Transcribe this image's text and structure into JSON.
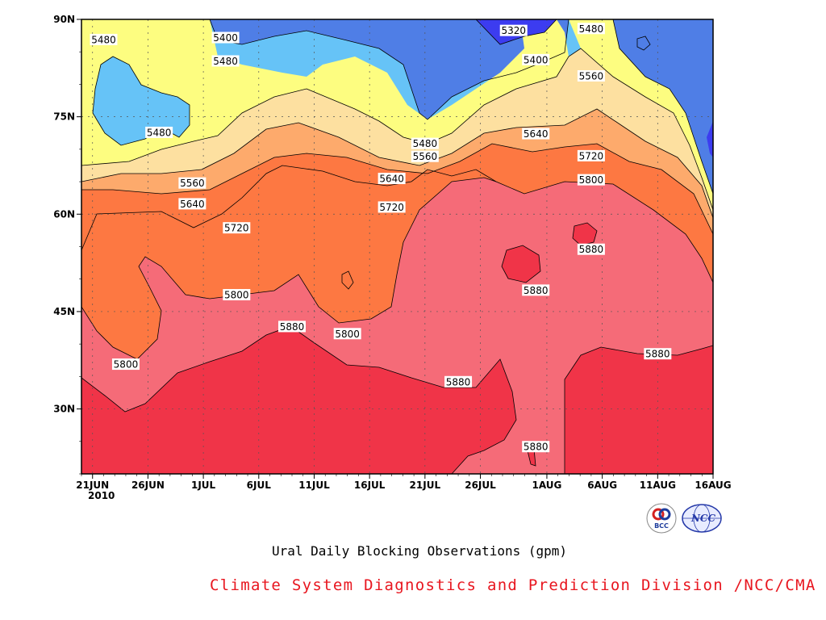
{
  "chart_data": {
    "type": "heatmap",
    "title": "Ural Daily Blocking Observations (gpm)",
    "x_axis": {
      "tick_labels": [
        "21JUN",
        "26JUN",
        "1JUL",
        "6JUL",
        "11JUL",
        "16JUL",
        "21JUL",
        "26JUL",
        "1AUG",
        "6AUG",
        "11AUG",
        "16AUG"
      ],
      "tick_dates": [
        "2010-06-21",
        "2010-06-26",
        "2010-07-01",
        "2010-07-06",
        "2010-07-11",
        "2010-07-16",
        "2010-07-21",
        "2010-07-26",
        "2010-08-01",
        "2010-08-06",
        "2010-08-11",
        "2010-08-16"
      ],
      "year_label": "2010",
      "range": [
        "2010-06-20",
        "2010-08-16"
      ]
    },
    "y_axis": {
      "tick_labels": [
        "30N",
        "45N",
        "60N",
        "75N",
        "90N"
      ],
      "tick_values": [
        30,
        45,
        60,
        75,
        90
      ],
      "range": [
        20,
        90
      ]
    },
    "contour_levels": [
      5320,
      5400,
      5480,
      5560,
      5640,
      5720,
      5800,
      5880
    ],
    "fill_colors": {
      "below_5320": "#3c3cf0",
      "5320_5400": "#4f7ee6",
      "5400_5480": "#66c3f7",
      "5480_5560": "#fdfd80",
      "5560_5640": "#fde0a0",
      "5640_5720": "#fdaa6c",
      "5720_5800": "#fd7842",
      "5800_5880": "#f56b78",
      "above_5880": "#f03448"
    },
    "contour_labels": [
      {
        "value": "5480",
        "date": "2010-06-22",
        "lat": 86.9
      },
      {
        "value": "5400",
        "date": "2010-07-03",
        "lat": 87.2
      },
      {
        "value": "5480",
        "date": "2010-07-03",
        "lat": 83.6
      },
      {
        "value": "5320",
        "date": "2010-07-29",
        "lat": 88.3
      },
      {
        "value": "5480",
        "date": "2010-08-05",
        "lat": 88.6
      },
      {
        "value": "5400",
        "date": "2010-07-31",
        "lat": 83.8
      },
      {
        "value": "5560",
        "date": "2010-08-05",
        "lat": 81.3
      },
      {
        "value": "5480",
        "date": "2010-06-27",
        "lat": 72.6
      },
      {
        "value": "5640",
        "date": "2010-07-31",
        "lat": 72.4
      },
      {
        "value": "5480",
        "date": "2010-07-21",
        "lat": 70.9
      },
      {
        "value": "5560",
        "date": "2010-07-21",
        "lat": 68.9
      },
      {
        "value": "5720",
        "date": "2010-08-05",
        "lat": 69.0
      },
      {
        "value": "5640",
        "date": "2010-07-18",
        "lat": 65.5
      },
      {
        "value": "5800",
        "date": "2010-08-05",
        "lat": 65.3
      },
      {
        "value": "5560",
        "date": "2010-06-30",
        "lat": 64.8
      },
      {
        "value": "5640",
        "date": "2010-06-30",
        "lat": 61.6
      },
      {
        "value": "5720",
        "date": "2010-07-18",
        "lat": 61.1
      },
      {
        "value": "5720",
        "date": "2010-07-04",
        "lat": 57.9
      },
      {
        "value": "5880",
        "date": "2010-08-05",
        "lat": 54.6
      },
      {
        "value": "5880",
        "date": "2010-07-31",
        "lat": 48.3
      },
      {
        "value": "5800",
        "date": "2010-07-04",
        "lat": 47.6
      },
      {
        "value": "5880",
        "date": "2010-07-09",
        "lat": 42.7
      },
      {
        "value": "5800",
        "date": "2010-07-14",
        "lat": 41.6
      },
      {
        "value": "5880",
        "date": "2010-08-11",
        "lat": 38.5
      },
      {
        "value": "5800",
        "date": "2010-06-24",
        "lat": 36.9
      },
      {
        "value": "5880",
        "date": "2010-07-24",
        "lat": 34.2
      },
      {
        "value": "5880",
        "date": "2010-07-31",
        "lat": 24.2
      }
    ]
  },
  "credit": "Climate System Diagnostics and Prediction Division /NCC/CMA",
  "logos": {
    "bcc_text": "BCC",
    "ncc_text": "NCC",
    "colors": {
      "bcc_red": "#d42020",
      "bcc_blue": "#1e3c9c",
      "ncc_blue": "#2438a8"
    }
  }
}
